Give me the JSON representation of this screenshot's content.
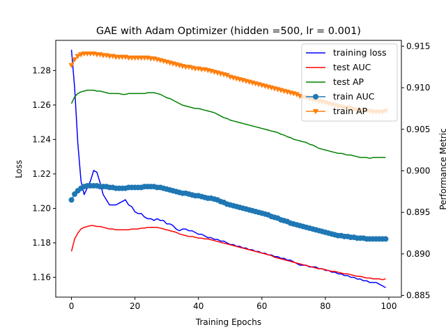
{
  "chart_data": {
    "type": "line",
    "title": "GAE with Adam Optimizer (hidden =500, lr = 0.001)",
    "xlabel": "Training Epochs",
    "ylabel_left": "Loss",
    "ylabel_right": "Performance Metric",
    "xlim": [
      -4.95,
      103.95
    ],
    "ylim_left": [
      1.1485,
      1.2975
    ],
    "ylim_right": [
      0.8848,
      0.9157
    ],
    "xticks": [
      0,
      20,
      40,
      60,
      80,
      100
    ],
    "yticks_left": [
      1.16,
      1.18,
      1.2,
      1.22,
      1.24,
      1.26,
      1.28
    ],
    "yticks_right": [
      0.885,
      0.89,
      0.895,
      0.9,
      0.905,
      0.91,
      0.915
    ],
    "grid": false,
    "legend_position": "top-right",
    "series": [
      {
        "name": "training loss",
        "axis": "left",
        "color": "#0000ff",
        "marker": "none",
        "x": [
          0,
          1,
          2,
          3,
          4,
          5,
          6,
          7,
          8,
          9,
          10,
          11,
          12,
          13,
          14,
          15,
          16,
          17,
          18,
          19,
          20,
          21,
          22,
          23,
          24,
          25,
          26,
          27,
          28,
          29,
          30,
          31,
          32,
          33,
          34,
          35,
          36,
          37,
          38,
          39,
          40,
          41,
          42,
          43,
          44,
          45,
          46,
          47,
          48,
          49,
          50,
          51,
          52,
          53,
          54,
          55,
          56,
          57,
          58,
          59,
          60,
          61,
          62,
          63,
          64,
          65,
          66,
          67,
          68,
          69,
          70,
          71,
          72,
          73,
          74,
          75,
          76,
          77,
          78,
          79,
          80,
          81,
          82,
          83,
          84,
          85,
          86,
          87,
          88,
          89,
          90,
          91,
          92,
          93,
          94,
          95,
          96,
          97,
          98,
          99
        ],
        "values": [
          1.292,
          1.27,
          1.238,
          1.216,
          1.208,
          1.212,
          1.216,
          1.222,
          1.221,
          1.215,
          1.208,
          1.205,
          1.202,
          1.202,
          1.202,
          1.203,
          1.204,
          1.205,
          1.202,
          1.201,
          1.198,
          1.197,
          1.197,
          1.195,
          1.194,
          1.194,
          1.193,
          1.194,
          1.193,
          1.193,
          1.191,
          1.191,
          1.19,
          1.188,
          1.187,
          1.188,
          1.188,
          1.187,
          1.187,
          1.186,
          1.185,
          1.185,
          1.184,
          1.183,
          1.183,
          1.182,
          1.182,
          1.181,
          1.181,
          1.18,
          1.179,
          1.179,
          1.178,
          1.178,
          1.177,
          1.177,
          1.176,
          1.176,
          1.175,
          1.175,
          1.174,
          1.174,
          1.173,
          1.173,
          1.172,
          1.172,
          1.171,
          1.171,
          1.17,
          1.17,
          1.169,
          1.168,
          1.167,
          1.167,
          1.167,
          1.166,
          1.166,
          1.166,
          1.165,
          1.165,
          1.164,
          1.164,
          1.163,
          1.163,
          1.162,
          1.162,
          1.161,
          1.161,
          1.16,
          1.16,
          1.159,
          1.159,
          1.158,
          1.158,
          1.157,
          1.157,
          1.157,
          1.156,
          1.155,
          1.154
        ]
      },
      {
        "name": "test AUC",
        "axis": "right",
        "color": "#ff0000",
        "marker": "none",
        "x": [
          0,
          1,
          2,
          3,
          4,
          5,
          6,
          7,
          8,
          9,
          10,
          11,
          12,
          13,
          14,
          15,
          16,
          17,
          18,
          19,
          20,
          21,
          22,
          23,
          24,
          25,
          26,
          27,
          28,
          29,
          30,
          31,
          32,
          33,
          34,
          35,
          36,
          37,
          38,
          39,
          40,
          41,
          42,
          43,
          44,
          45,
          46,
          47,
          48,
          49,
          50,
          51,
          52,
          53,
          54,
          55,
          56,
          57,
          58,
          59,
          60,
          61,
          62,
          63,
          64,
          65,
          66,
          67,
          68,
          69,
          70,
          71,
          72,
          73,
          74,
          75,
          76,
          77,
          78,
          79,
          80,
          81,
          82,
          83,
          84,
          85,
          86,
          87,
          88,
          89,
          90,
          91,
          92,
          93,
          94,
          95,
          96,
          97,
          98,
          99
        ],
        "values": [
          0.8903,
          0.8918,
          0.8925,
          0.893,
          0.8932,
          0.8933,
          0.8934,
          0.8934,
          0.8933,
          0.8933,
          0.8932,
          0.8931,
          0.893,
          0.893,
          0.8929,
          0.8929,
          0.8929,
          0.8929,
          0.8929,
          0.893,
          0.893,
          0.893,
          0.8931,
          0.8931,
          0.8932,
          0.8932,
          0.8932,
          0.8932,
          0.8931,
          0.893,
          0.8929,
          0.8928,
          0.8927,
          0.8926,
          0.8924,
          0.8923,
          0.8922,
          0.8921,
          0.8921,
          0.892,
          0.8919,
          0.8919,
          0.8918,
          0.8918,
          0.8917,
          0.8916,
          0.8915,
          0.8914,
          0.8913,
          0.8912,
          0.8911,
          0.891,
          0.8909,
          0.8908,
          0.8907,
          0.8906,
          0.8905,
          0.8904,
          0.8903,
          0.8902,
          0.8901,
          0.89,
          0.8899,
          0.8898,
          0.8896,
          0.8895,
          0.8894,
          0.8893,
          0.8892,
          0.8891,
          0.889,
          0.8889,
          0.8888,
          0.8887,
          0.8886,
          0.8885,
          0.8884,
          0.8883,
          0.8882,
          0.8882,
          0.8881,
          0.888,
          0.8879,
          0.8879,
          0.8878,
          0.8877,
          0.8876,
          0.8876,
          0.8875,
          0.8874,
          0.8873,
          0.8873,
          0.8872,
          0.8871,
          0.8871,
          0.887,
          0.887,
          0.887,
          0.8869,
          0.887
        ]
      },
      {
        "name": "test AP",
        "axis": "right",
        "color": "#008000",
        "marker": "none",
        "x": [
          0,
          1,
          2,
          3,
          4,
          5,
          6,
          7,
          8,
          9,
          10,
          11,
          12,
          13,
          14,
          15,
          16,
          17,
          18,
          19,
          20,
          21,
          22,
          23,
          24,
          25,
          26,
          27,
          28,
          29,
          30,
          31,
          32,
          33,
          34,
          35,
          36,
          37,
          38,
          39,
          40,
          41,
          42,
          43,
          44,
          45,
          46,
          47,
          48,
          49,
          50,
          51,
          52,
          53,
          54,
          55,
          56,
          57,
          58,
          59,
          60,
          61,
          62,
          63,
          64,
          65,
          66,
          67,
          68,
          69,
          70,
          71,
          72,
          73,
          74,
          75,
          76,
          77,
          78,
          79,
          80,
          81,
          82,
          83,
          84,
          85,
          86,
          87,
          88,
          89,
          90,
          91,
          92,
          93,
          94,
          95,
          96,
          97,
          98,
          99
        ],
        "values": [
          0.9081,
          0.9089,
          0.9093,
          0.9095,
          0.9096,
          0.9097,
          0.9097,
          0.9097,
          0.9096,
          0.9096,
          0.9095,
          0.9094,
          0.9093,
          0.9093,
          0.9093,
          0.9093,
          0.9092,
          0.9092,
          0.9093,
          0.9093,
          0.9093,
          0.9093,
          0.9093,
          0.9093,
          0.9094,
          0.9094,
          0.9094,
          0.9093,
          0.9092,
          0.909,
          0.9088,
          0.9087,
          0.9085,
          0.9083,
          0.9081,
          0.9079,
          0.9078,
          0.9077,
          0.9076,
          0.9075,
          0.9075,
          0.9074,
          0.9073,
          0.9072,
          0.9071,
          0.907,
          0.9068,
          0.9066,
          0.9064,
          0.9063,
          0.9061,
          0.906,
          0.9059,
          0.9058,
          0.9057,
          0.9056,
          0.9055,
          0.9054,
          0.9053,
          0.9052,
          0.9051,
          0.905,
          0.9049,
          0.9048,
          0.9047,
          0.9046,
          0.9044,
          0.9043,
          0.9041,
          0.904,
          0.9038,
          0.9037,
          0.9036,
          0.9035,
          0.9034,
          0.9032,
          0.9031,
          0.9029,
          0.9027,
          0.9026,
          0.9025,
          0.9024,
          0.9023,
          0.9022,
          0.9021,
          0.9021,
          0.902,
          0.9019,
          0.9019,
          0.9018,
          0.9017,
          0.9016,
          0.9016,
          0.9016,
          0.9015,
          0.9016,
          0.9016,
          0.9016,
          0.9016,
          0.9016
        ]
      },
      {
        "name": "train AUC",
        "axis": "right",
        "color": "#1f77b4",
        "marker": "circle",
        "x": [
          0,
          1,
          2,
          3,
          4,
          5,
          6,
          7,
          8,
          9,
          10,
          11,
          12,
          13,
          14,
          15,
          16,
          17,
          18,
          19,
          20,
          21,
          22,
          23,
          24,
          25,
          26,
          27,
          28,
          29,
          30,
          31,
          32,
          33,
          34,
          35,
          36,
          37,
          38,
          39,
          40,
          41,
          42,
          43,
          44,
          45,
          46,
          47,
          48,
          49,
          50,
          51,
          52,
          53,
          54,
          55,
          56,
          57,
          58,
          59,
          60,
          61,
          62,
          63,
          64,
          65,
          66,
          67,
          68,
          69,
          70,
          71,
          72,
          73,
          74,
          75,
          76,
          77,
          78,
          79,
          80,
          81,
          82,
          83,
          84,
          85,
          86,
          87,
          88,
          89,
          90,
          91,
          92,
          93,
          94,
          95,
          96,
          97,
          98,
          99
        ],
        "values": [
          0.8965,
          0.8972,
          0.8976,
          0.8979,
          0.8981,
          0.8982,
          0.8982,
          0.8982,
          0.8982,
          0.8981,
          0.8981,
          0.8981,
          0.898,
          0.898,
          0.8979,
          0.8979,
          0.8979,
          0.8979,
          0.898,
          0.898,
          0.898,
          0.898,
          0.898,
          0.8981,
          0.8981,
          0.8981,
          0.8981,
          0.898,
          0.898,
          0.8979,
          0.8978,
          0.8977,
          0.8976,
          0.8975,
          0.8974,
          0.8973,
          0.8973,
          0.8972,
          0.8971,
          0.897,
          0.897,
          0.8969,
          0.8968,
          0.8967,
          0.8967,
          0.8966,
          0.8965,
          0.8963,
          0.8962,
          0.896,
          0.8959,
          0.8958,
          0.8957,
          0.8956,
          0.8955,
          0.8954,
          0.8953,
          0.8952,
          0.8951,
          0.895,
          0.8949,
          0.8948,
          0.8947,
          0.8945,
          0.8944,
          0.8943,
          0.8941,
          0.894,
          0.8939,
          0.8937,
          0.8936,
          0.8935,
          0.8934,
          0.8933,
          0.8932,
          0.8931,
          0.893,
          0.8929,
          0.8928,
          0.8927,
          0.8926,
          0.8925,
          0.8924,
          0.8923,
          0.8922,
          0.8922,
          0.8921,
          0.8921,
          0.892,
          0.892,
          0.8919,
          0.8919,
          0.8919,
          0.8918,
          0.8918,
          0.8918,
          0.8918,
          0.8918,
          0.8918,
          0.8918
        ]
      },
      {
        "name": "train AP",
        "axis": "right",
        "color": "#ff7f0e",
        "marker": "triangle-down",
        "x": [
          0,
          1,
          2,
          3,
          4,
          5,
          6,
          7,
          8,
          9,
          10,
          11,
          12,
          13,
          14,
          15,
          16,
          17,
          18,
          19,
          20,
          21,
          22,
          23,
          24,
          25,
          26,
          27,
          28,
          29,
          30,
          31,
          32,
          33,
          34,
          35,
          36,
          37,
          38,
          39,
          40,
          41,
          42,
          43,
          44,
          45,
          46,
          47,
          48,
          49,
          50,
          51,
          52,
          53,
          54,
          55,
          56,
          57,
          58,
          59,
          60,
          61,
          62,
          63,
          64,
          65,
          66,
          67,
          68,
          69,
          70,
          71,
          72,
          73,
          74,
          75,
          76,
          77,
          78,
          79,
          80,
          81,
          82,
          83,
          84,
          85,
          86,
          87,
          88,
          89,
          90,
          91,
          92,
          93,
          94,
          95,
          96,
          97,
          98,
          99
        ],
        "values": [
          0.9127,
          0.9134,
          0.9138,
          0.914,
          0.9141,
          0.9141,
          0.9141,
          0.9141,
          0.914,
          0.914,
          0.9139,
          0.9139,
          0.9138,
          0.9138,
          0.9137,
          0.9137,
          0.9137,
          0.9137,
          0.9136,
          0.9136,
          0.9136,
          0.9136,
          0.9136,
          0.9136,
          0.9136,
          0.9135,
          0.9135,
          0.9134,
          0.9133,
          0.9132,
          0.9131,
          0.913,
          0.9129,
          0.9128,
          0.9127,
          0.9126,
          0.9125,
          0.9125,
          0.9124,
          0.9123,
          0.9123,
          0.9122,
          0.9122,
          0.9121,
          0.912,
          0.9119,
          0.9118,
          0.9117,
          0.9116,
          0.9115,
          0.9113,
          0.9112,
          0.9111,
          0.911,
          0.9109,
          0.9108,
          0.9107,
          0.9106,
          0.9105,
          0.9104,
          0.9103,
          0.9102,
          0.9101,
          0.91,
          0.9099,
          0.9098,
          0.9097,
          0.9096,
          0.9095,
          0.9094,
          0.9093,
          0.9092,
          0.909,
          0.9089,
          0.9088,
          0.9087,
          0.9086,
          0.9085,
          0.9084,
          0.9083,
          0.9082,
          0.9081,
          0.908,
          0.9079,
          0.9078,
          0.9077,
          0.9076,
          0.9076,
          0.9075,
          0.9074,
          0.9073,
          0.9073,
          0.9072,
          0.9072,
          0.9072,
          0.9071,
          0.9071,
          0.9071,
          0.9071,
          0.9072
        ]
      }
    ]
  }
}
